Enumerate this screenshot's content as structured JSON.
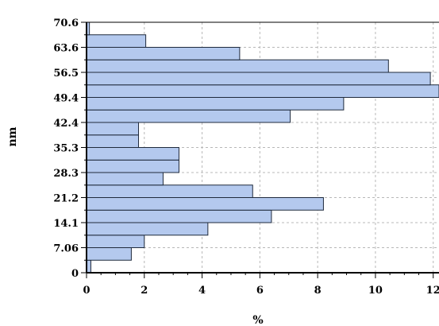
{
  "chart_data": {
    "type": "bar",
    "orientation": "horizontal",
    "xlabel": "%",
    "ylabel": "nm",
    "xlim": [
      0,
      12.2
    ],
    "ylim": [
      0,
      70.6
    ],
    "x_ticks": [
      0,
      2,
      4,
      6,
      8,
      10,
      12
    ],
    "y_tick_labels": [
      "0",
      "7.06",
      "14.1",
      "21.2",
      "28.3",
      "35.3",
      "42.4",
      "49.4",
      "56.5",
      "63.6",
      "70.6"
    ],
    "bin_width": 3.53,
    "bins": [
      {
        "y0": 0.0,
        "y1": 3.53,
        "value": 0.15
      },
      {
        "y0": 3.53,
        "y1": 7.06,
        "value": 1.55
      },
      {
        "y0": 7.06,
        "y1": 10.59,
        "value": 2.0
      },
      {
        "y0": 10.59,
        "y1": 14.12,
        "value": 4.2
      },
      {
        "y0": 14.12,
        "y1": 17.65,
        "value": 6.4
      },
      {
        "y0": 17.65,
        "y1": 21.18,
        "value": 8.2
      },
      {
        "y0": 21.18,
        "y1": 24.71,
        "value": 5.75
      },
      {
        "y0": 24.71,
        "y1": 28.24,
        "value": 2.65
      },
      {
        "y0": 28.24,
        "y1": 31.77,
        "value": 3.2
      },
      {
        "y0": 31.77,
        "y1": 35.3,
        "value": 3.2
      },
      {
        "y0": 35.3,
        "y1": 38.83,
        "value": 1.8
      },
      {
        "y0": 38.83,
        "y1": 42.36,
        "value": 1.8
      },
      {
        "y0": 42.36,
        "y1": 45.89,
        "value": 7.05
      },
      {
        "y0": 45.89,
        "y1": 49.42,
        "value": 8.9
      },
      {
        "y0": 49.42,
        "y1": 52.95,
        "value": 12.2
      },
      {
        "y0": 52.95,
        "y1": 56.48,
        "value": 11.9
      },
      {
        "y0": 56.48,
        "y1": 60.01,
        "value": 10.45
      },
      {
        "y0": 60.01,
        "y1": 63.54,
        "value": 5.3
      },
      {
        "y0": 63.54,
        "y1": 67.07,
        "value": 2.05
      },
      {
        "y0": 67.07,
        "y1": 70.6,
        "value": 0.1
      }
    ],
    "grid": true,
    "colors": {
      "bar_fill": "#b4c9ee",
      "bar_edge": "#1f2a3c",
      "grid": "#b8b8b8"
    }
  }
}
